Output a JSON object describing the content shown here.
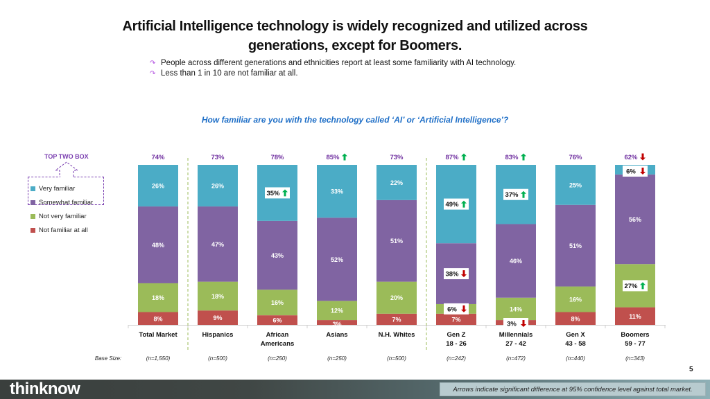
{
  "slide": {
    "title_line1": "Artificial Intelligence technology is widely recognized and utilized across",
    "title_line2": "generations, except for Boomers.",
    "bullets": [
      "People across different generations and ethnicities report at least some familiarity with AI technology.",
      "Less than 1 in 10 are not familiar at all."
    ],
    "bullet_icon": "curved-arrow-bullet-icon",
    "question": "How familiar are you with the technology called ‘AI’ or ‘Artificial Intelligence’?",
    "top_two_box_label": "TOP TWO BOX",
    "base_size_label": "Base Size:",
    "page_number": "5",
    "logo_text": "thinknow",
    "footnote": "Arrows indicate significant difference at 95% confidence level against total market."
  },
  "colors": {
    "very_familiar": "#4bacc6",
    "somewhat_familiar": "#8064a2",
    "not_very_familiar": "#9bbb59",
    "not_familiar_at_all": "#c0504d",
    "top_two_box_text": "#7030a0",
    "arrow_up": "#00b050",
    "arrow_down": "#c00000",
    "question_text": "#1f6fc7"
  },
  "chart_data": {
    "type": "bar",
    "stacked": true,
    "title": "How familiar are you with the technology called ‘AI’ or ‘Artificial Intelligence’?",
    "xlabel": "",
    "ylabel": "",
    "ylim": [
      0,
      100
    ],
    "legend_position": "left",
    "grid": false,
    "categories": [
      {
        "name": "Total Market",
        "sub": "",
        "base": "(n=1,550)"
      },
      {
        "name": "Hispanics",
        "sub": "",
        "base": "(n=500)"
      },
      {
        "name": "African",
        "sub": "Americans",
        "base": "(n=250)"
      },
      {
        "name": "Asians",
        "sub": "",
        "base": "(n=250)"
      },
      {
        "name": "N.H. Whites",
        "sub": "",
        "base": "(n=500)"
      },
      {
        "name": "Gen Z",
        "sub": "18 - 26",
        "base": "(n=242)"
      },
      {
        "name": "Millennials",
        "sub": "27 - 42",
        "base": "(n=472)"
      },
      {
        "name": "Gen X",
        "sub": "43 - 58",
        "base": "(n=440)"
      },
      {
        "name": "Boomers",
        "sub": "59 - 77",
        "base": "(n=343)"
      }
    ],
    "series": [
      {
        "name": "Not familiar at all",
        "key": "not_familiar_at_all",
        "values": [
          8,
          9,
          6,
          3,
          7,
          7,
          3,
          8,
          11
        ],
        "sig": [
          "",
          "",
          "",
          "",
          "",
          "",
          "down",
          "",
          ""
        ]
      },
      {
        "name": "Not very familiar",
        "key": "not_very_familiar",
        "values": [
          18,
          18,
          16,
          12,
          20,
          6,
          14,
          16,
          27
        ],
        "sig": [
          "",
          "",
          "",
          "",
          "",
          "down",
          "",
          "",
          "up"
        ]
      },
      {
        "name": "Somewhat familiar",
        "key": "somewhat_familiar",
        "values": [
          48,
          47,
          43,
          52,
          51,
          38,
          46,
          51,
          56
        ],
        "sig": [
          "",
          "",
          "",
          "",
          "",
          "down",
          "",
          "",
          ""
        ]
      },
      {
        "name": "Very familiar",
        "key": "very_familiar",
        "values": [
          26,
          26,
          35,
          33,
          22,
          49,
          37,
          25,
          6
        ],
        "sig": [
          "",
          "",
          "up",
          "",
          "",
          "up",
          "up",
          "",
          "down"
        ]
      }
    ],
    "top_two_box": {
      "values": [
        74,
        73,
        78,
        85,
        73,
        87,
        83,
        76,
        62
      ],
      "sig": [
        "",
        "",
        "",
        "up",
        "",
        "up",
        "up",
        "",
        "down"
      ]
    },
    "legend": [
      "Very familiar",
      "Somewhat familiar",
      "Not very familiar",
      "Not familiar at all"
    ],
    "group_separators_after": [
      0,
      4
    ]
  }
}
